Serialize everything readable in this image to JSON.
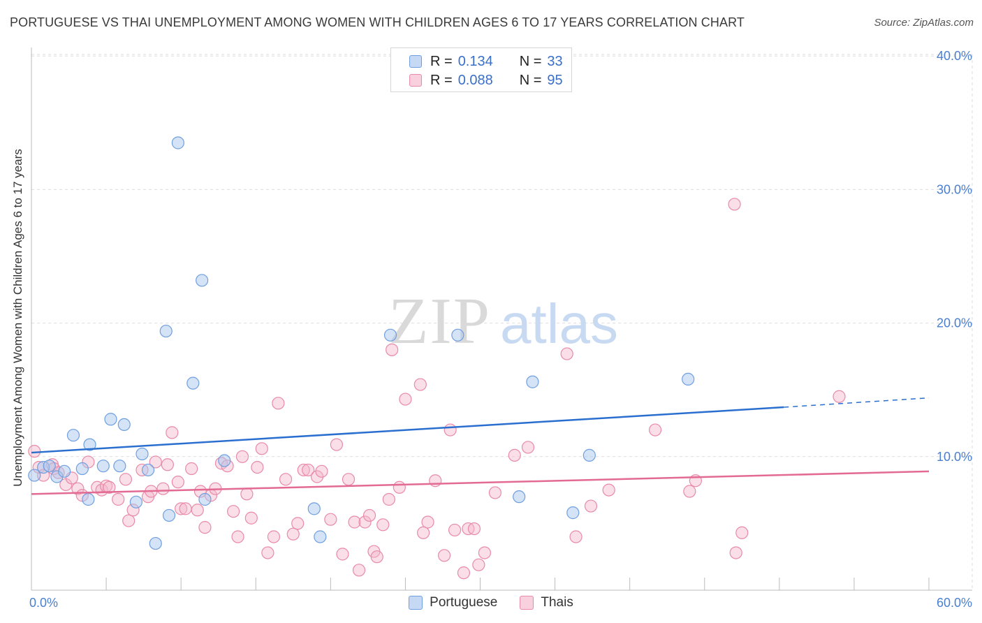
{
  "header": {
    "title": "PORTUGUESE VS THAI UNEMPLOYMENT AMONG WOMEN WITH CHILDREN AGES 6 TO 17 YEARS CORRELATION CHART",
    "source": "Source: ZipAtlas.com"
  },
  "watermark": {
    "zip": "ZIP",
    "atlas": "atlas"
  },
  "legend_top": {
    "rows": [
      {
        "r_label": "R =",
        "r_value": "0.134",
        "n_label": "N =",
        "n_value": "33"
      },
      {
        "r_label": "R =",
        "r_value": "0.088",
        "n_label": "N =",
        "n_value": "95"
      }
    ]
  },
  "legend_bottom": {
    "items": [
      "Portuguese",
      "Thais"
    ]
  },
  "colors": {
    "portuguese_fill": "#a9c7ee",
    "portuguese_stroke": "#6f9fe0",
    "portuguese_line": "#2a6fcf",
    "thai_fill": "#f5b8cc",
    "thai_stroke": "#e88aa8",
    "thai_line": "#e26a93",
    "tick_label": "#4a7fd0",
    "grid": "#dddddd"
  },
  "chart_data": {
    "type": "scatter",
    "title": "PORTUGUESE VS THAI UNEMPLOYMENT AMONG WOMEN WITH CHILDREN AGES 6 TO 17 YEARS CORRELATION CHART",
    "xlabel": "",
    "ylabel": "Unemployment Among Women with Children Ages 6 to 17 years",
    "xlim": [
      0,
      60
    ],
    "ylim": [
      0,
      42
    ],
    "x_tick_labels": [
      "0.0%",
      "60.0%"
    ],
    "y_ticks": [
      10,
      20,
      30,
      40
    ],
    "y_tick_labels": [
      "10.0%",
      "20.0%",
      "30.0%",
      "40.0%"
    ],
    "grid": true,
    "legend_position": "top-center",
    "series": [
      {
        "name": "Portuguese",
        "r": 0.134,
        "n": 33,
        "trend": {
          "x0": 0,
          "y0": 10.3,
          "x1": 50.3,
          "y1": 13.7,
          "dashed_to_x": 60,
          "dashed_to_y": 14.4
        },
        "points": [
          [
            0.2,
            8.6
          ],
          [
            0.8,
            9.2
          ],
          [
            1.2,
            9.3
          ],
          [
            1.7,
            8.5
          ],
          [
            2.2,
            8.9
          ],
          [
            2.8,
            11.6
          ],
          [
            3.4,
            9.1
          ],
          [
            3.8,
            6.8
          ],
          [
            3.9,
            10.9
          ],
          [
            4.8,
            9.3
          ],
          [
            5.3,
            12.8
          ],
          [
            5.9,
            9.3
          ],
          [
            6.2,
            12.4
          ],
          [
            7.0,
            6.6
          ],
          [
            7.4,
            10.2
          ],
          [
            7.8,
            9.0
          ],
          [
            8.3,
            3.5
          ],
          [
            9.0,
            19.4
          ],
          [
            9.2,
            5.6
          ],
          [
            9.8,
            33.5
          ],
          [
            10.8,
            15.5
          ],
          [
            11.4,
            23.2
          ],
          [
            11.6,
            6.8
          ],
          [
            12.9,
            9.7
          ],
          [
            18.9,
            6.1
          ],
          [
            19.3,
            4.0
          ],
          [
            24.0,
            19.1
          ],
          [
            28.5,
            19.1
          ],
          [
            32.6,
            7.0
          ],
          [
            33.5,
            15.6
          ],
          [
            36.2,
            5.8
          ],
          [
            37.3,
            10.1
          ],
          [
            43.9,
            15.8
          ]
        ]
      },
      {
        "name": "Thais",
        "r": 0.088,
        "n": 95,
        "trend": {
          "x0": 0,
          "y0": 7.2,
          "x1": 60,
          "y1": 8.9
        },
        "points": [
          [
            0.2,
            10.4
          ],
          [
            0.5,
            9.2
          ],
          [
            0.8,
            8.6
          ],
          [
            1.4,
            9.4
          ],
          [
            1.5,
            9.1
          ],
          [
            1.8,
            8.8
          ],
          [
            2.3,
            7.9
          ],
          [
            2.7,
            8.4
          ],
          [
            3.1,
            7.6
          ],
          [
            3.4,
            7.1
          ],
          [
            3.8,
            9.6
          ],
          [
            4.4,
            7.7
          ],
          [
            4.7,
            7.5
          ],
          [
            5.0,
            7.8
          ],
          [
            5.2,
            7.7
          ],
          [
            5.8,
            6.8
          ],
          [
            6.3,
            8.3
          ],
          [
            6.5,
            5.2
          ],
          [
            6.8,
            6.0
          ],
          [
            7.4,
            9.0
          ],
          [
            7.8,
            7.0
          ],
          [
            8.0,
            7.4
          ],
          [
            8.3,
            9.6
          ],
          [
            8.8,
            7.6
          ],
          [
            9.1,
            9.4
          ],
          [
            9.4,
            11.8
          ],
          [
            9.8,
            8.1
          ],
          [
            10.0,
            6.1
          ],
          [
            10.3,
            6.1
          ],
          [
            10.7,
            9.1
          ],
          [
            11.1,
            6.0
          ],
          [
            11.3,
            7.4
          ],
          [
            11.6,
            4.7
          ],
          [
            12.0,
            7.1
          ],
          [
            12.3,
            7.6
          ],
          [
            12.7,
            9.5
          ],
          [
            13.1,
            9.3
          ],
          [
            13.5,
            5.9
          ],
          [
            13.8,
            4.0
          ],
          [
            14.1,
            10.0
          ],
          [
            14.4,
            7.2
          ],
          [
            14.7,
            5.4
          ],
          [
            15.1,
            9.2
          ],
          [
            15.4,
            10.6
          ],
          [
            15.8,
            2.8
          ],
          [
            16.2,
            4.0
          ],
          [
            16.5,
            14.0
          ],
          [
            17.0,
            8.3
          ],
          [
            17.5,
            4.2
          ],
          [
            17.8,
            5.0
          ],
          [
            18.2,
            9.0
          ],
          [
            18.5,
            9.0
          ],
          [
            19.1,
            8.5
          ],
          [
            19.4,
            8.9
          ],
          [
            20.0,
            5.3
          ],
          [
            20.4,
            10.9
          ],
          [
            20.8,
            2.7
          ],
          [
            21.2,
            8.3
          ],
          [
            21.6,
            5.1
          ],
          [
            21.9,
            1.5
          ],
          [
            22.3,
            5.1
          ],
          [
            22.6,
            5.6
          ],
          [
            22.9,
            2.9
          ],
          [
            23.1,
            2.5
          ],
          [
            23.5,
            4.9
          ],
          [
            23.9,
            6.8
          ],
          [
            24.1,
            18.0
          ],
          [
            24.6,
            7.7
          ],
          [
            25.0,
            14.3
          ],
          [
            26.0,
            15.4
          ],
          [
            26.2,
            4.3
          ],
          [
            26.5,
            5.1
          ],
          [
            27.0,
            8.2
          ],
          [
            27.6,
            2.6
          ],
          [
            28.0,
            12.0
          ],
          [
            28.3,
            4.5
          ],
          [
            28.9,
            1.3
          ],
          [
            29.2,
            4.6
          ],
          [
            29.6,
            4.6
          ],
          [
            29.9,
            1.9
          ],
          [
            30.3,
            2.8
          ],
          [
            31.0,
            7.3
          ],
          [
            32.3,
            10.1
          ],
          [
            33.2,
            10.7
          ],
          [
            35.8,
            17.7
          ],
          [
            36.4,
            4.0
          ],
          [
            37.4,
            6.3
          ],
          [
            38.6,
            7.5
          ],
          [
            41.7,
            12.0
          ],
          [
            44.0,
            7.4
          ],
          [
            44.4,
            8.2
          ],
          [
            47.0,
            28.9
          ],
          [
            47.1,
            2.8
          ],
          [
            47.5,
            4.3
          ],
          [
            54.0,
            14.5
          ]
        ]
      }
    ]
  }
}
